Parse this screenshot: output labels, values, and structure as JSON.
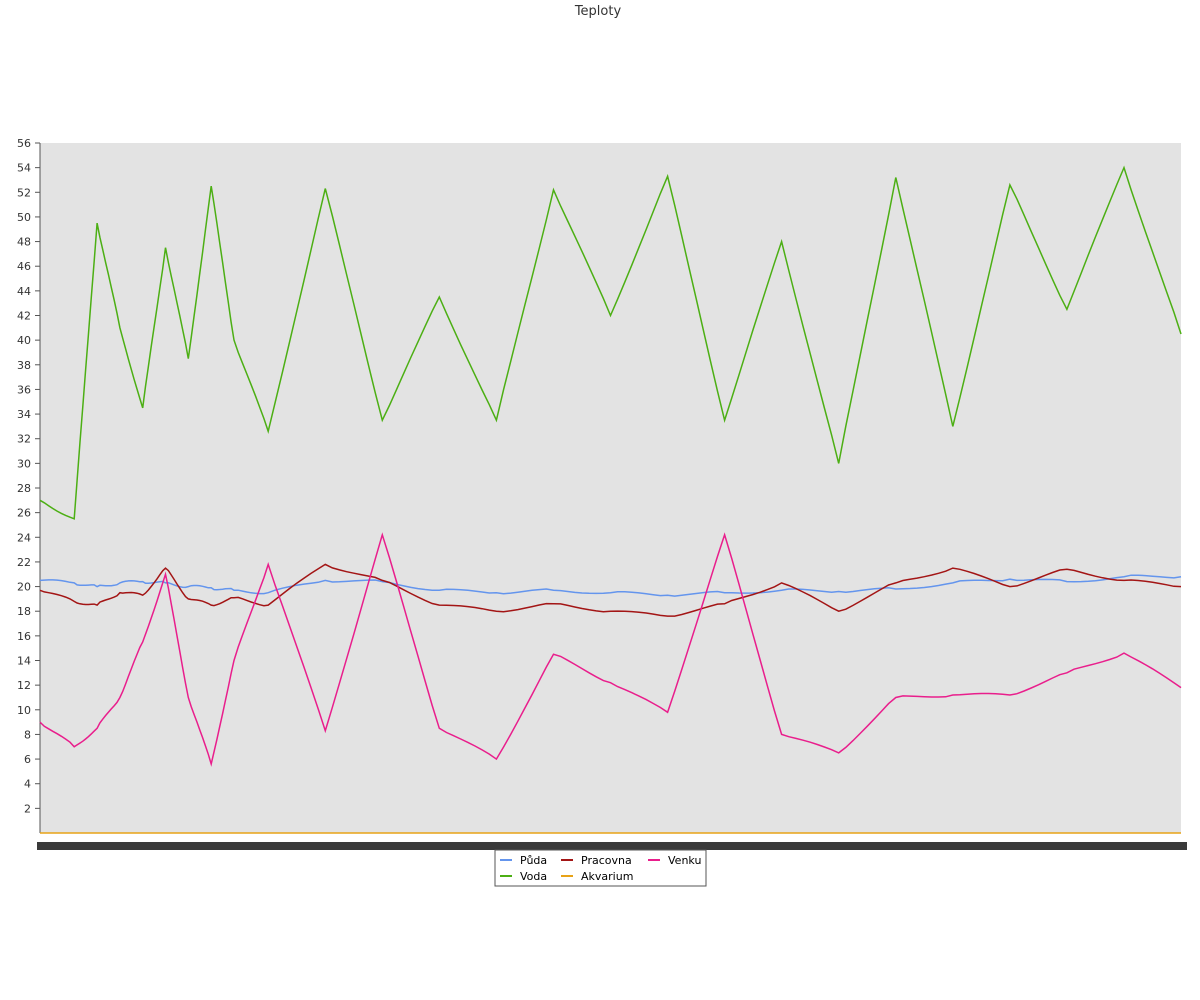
{
  "chart_data": {
    "type": "line",
    "title": "Teploty",
    "xlabel": "",
    "ylabel": "",
    "ylim": [
      0,
      56
    ],
    "yticks": [
      2,
      4,
      6,
      8,
      10,
      12,
      14,
      16,
      18,
      20,
      22,
      24,
      26,
      28,
      30,
      32,
      34,
      36,
      38,
      40,
      42,
      44,
      46,
      48,
      50,
      52,
      54,
      56
    ],
    "grid": false,
    "legend_position": "bottom-center",
    "x": [
      0,
      3,
      5,
      7,
      9,
      11,
      13,
      15,
      17,
      20,
      25,
      30,
      35,
      40,
      45,
      50,
      55,
      60,
      65,
      70,
      75,
      80,
      85,
      90,
      95,
      100
    ],
    "series": [
      {
        "name": "Půda",
        "color": "#6495ed",
        "values": [
          20.5,
          20.3,
          20.0,
          20.3,
          20.4,
          20.3,
          20.0,
          19.9,
          19.7,
          19.5,
          20.5,
          20.4,
          19.7,
          19.5,
          19.7,
          19.5,
          19.3,
          19.5,
          19.7,
          19.6,
          19.8,
          20.3,
          20.6,
          20.4,
          20.8,
          20.8
        ]
      },
      {
        "name": "Voda",
        "color": "#4caf14",
        "values": [
          27,
          25.5,
          49.5,
          41,
          34.5,
          47.5,
          38.5,
          52.5,
          40,
          32.6,
          52.3,
          33.5,
          43.5,
          33.5,
          52.2,
          42,
          53.3,
          33.5,
          48,
          30,
          53.2,
          33,
          52.6,
          42.5,
          54,
          40.5
        ]
      },
      {
        "name": "Pracovna",
        "color": "#a31515",
        "values": [
          19.7,
          18.8,
          18.5,
          19.5,
          19.3,
          21.5,
          19.0,
          18.5,
          19.1,
          18.5,
          21.8,
          20.5,
          18.5,
          18.0,
          18.6,
          18.0,
          17.6,
          18.6,
          20.3,
          18.0,
          20.3,
          21.5,
          20.0,
          21.4,
          20.5,
          20.0
        ]
      },
      {
        "name": "Akvarium",
        "color": "#e8a317",
        "values": [
          0,
          0,
          0,
          0,
          0,
          0,
          0,
          0,
          0,
          0,
          0,
          0,
          0,
          0,
          0,
          0,
          0,
          0,
          0,
          0,
          0,
          0,
          0,
          0,
          0,
          0
        ]
      },
      {
        "name": "Venku",
        "color": "#e91e8c",
        "values": [
          9,
          7,
          8.5,
          11,
          15.5,
          21,
          11,
          5.6,
          14,
          21.8,
          8.3,
          24.2,
          8.5,
          6,
          14.5,
          12.2,
          9.8,
          24.2,
          8,
          6.5,
          11,
          11.2,
          11.2,
          13,
          14.6,
          11.8
        ]
      }
    ]
  }
}
